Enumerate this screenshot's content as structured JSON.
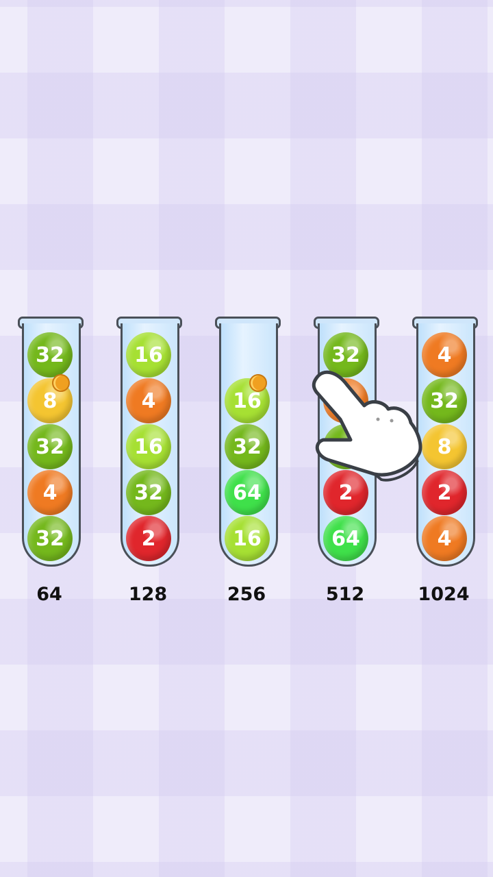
{
  "colors": {
    "2": "#e0262c",
    "4": "#ef7a22",
    "8": "#f4c531",
    "16": "#a6e033",
    "32": "#74b81c",
    "64": "#3fe04a",
    "hidden_orange": "#ef7a22",
    "hidden_green": "#74b81c"
  },
  "tubes": [
    {
      "label": "64",
      "balls": [
        {
          "v": "32"
        },
        {
          "v": "8",
          "coin": true
        },
        {
          "v": "32"
        },
        {
          "v": "4"
        },
        {
          "v": "32"
        }
      ]
    },
    {
      "label": "128",
      "balls": [
        {
          "v": "16"
        },
        {
          "v": "4"
        },
        {
          "v": "16"
        },
        {
          "v": "32"
        },
        {
          "v": "2"
        }
      ]
    },
    {
      "label": "256",
      "balls": [
        null,
        {
          "v": "16",
          "coin": true
        },
        {
          "v": "32"
        },
        {
          "v": "64"
        },
        {
          "v": "16"
        }
      ]
    },
    {
      "label": "512",
      "balls": [
        {
          "v": "32"
        },
        {
          "v": "",
          "c": "hidden_orange"
        },
        {
          "v": "",
          "c": "hidden_green"
        },
        {
          "v": "2"
        },
        {
          "v": "64"
        }
      ]
    },
    {
      "label": "1024",
      "balls": [
        {
          "v": "4"
        },
        {
          "v": "32"
        },
        {
          "v": "8"
        },
        {
          "v": "2"
        },
        {
          "v": "4"
        }
      ]
    }
  ],
  "tutorial": {
    "icon": "pointing-hand-icon"
  }
}
